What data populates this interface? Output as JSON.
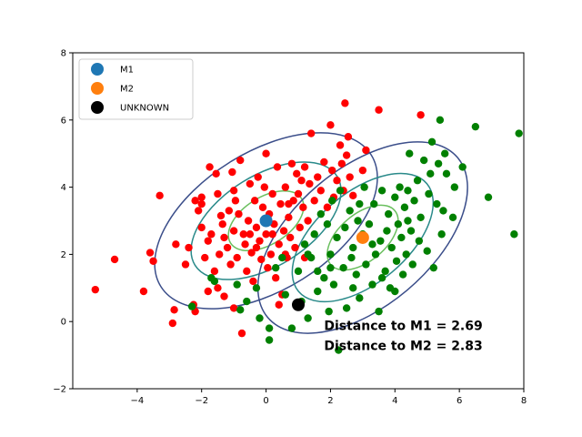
{
  "chart_data": {
    "type": "scatter",
    "xlim": [
      -6,
      8
    ],
    "ylim": [
      -2,
      8
    ],
    "x_ticks": [
      "−4",
      "−2",
      "0",
      "2",
      "4",
      "6",
      "8"
    ],
    "x_tick_values": [
      -4,
      -2,
      0,
      2,
      4,
      6,
      8
    ],
    "y_ticks": [
      "−2",
      "0",
      "2",
      "4",
      "6",
      "8"
    ],
    "y_tick_values": [
      -2,
      0,
      2,
      4,
      6,
      8
    ],
    "grid": false,
    "legend": {
      "placement": "upper-left",
      "entries": [
        {
          "label": "M1",
          "color": "#1f77b4"
        },
        {
          "label": "M2",
          "color": "#ff7f0e"
        },
        {
          "label": "UNKNOWN",
          "color": "#000000"
        }
      ]
    },
    "markers": [
      {
        "name": "M1",
        "x": 0.0,
        "y": 3.0,
        "color": "#1f77b4"
      },
      {
        "name": "M2",
        "x": 3.0,
        "y": 2.5,
        "color": "#ff7f0e"
      },
      {
        "name": "UNKNOWN",
        "x": 1.0,
        "y": 0.5,
        "color": "#000000"
      }
    ],
    "clusters": [
      {
        "color": "#ff0000",
        "points": [
          [
            -5.3,
            0.95
          ],
          [
            -4.7,
            1.85
          ],
          [
            -3.8,
            0.9
          ],
          [
            -3.6,
            2.05
          ],
          [
            -3.5,
            1.8
          ],
          [
            -3.3,
            3.75
          ],
          [
            -2.9,
            -0.05
          ],
          [
            -2.85,
            0.35
          ],
          [
            -2.8,
            2.3
          ],
          [
            -2.5,
            1.7
          ],
          [
            -2.4,
            2.2
          ],
          [
            -2.25,
            0.5
          ],
          [
            -2.2,
            0.3
          ],
          [
            -2.2,
            3.6
          ],
          [
            -2.1,
            3.3
          ],
          [
            -2.0,
            2.8
          ],
          [
            -2.0,
            3.7
          ],
          [
            -1.9,
            1.9
          ],
          [
            -1.8,
            2.4
          ],
          [
            -1.75,
            4.6
          ],
          [
            -1.7,
            2.6
          ],
          [
            -1.6,
            1.5
          ],
          [
            -1.55,
            4.4
          ],
          [
            -1.5,
            3.8
          ],
          [
            -1.5,
            1.0
          ],
          [
            -1.45,
            2.0
          ],
          [
            -1.4,
            3.15
          ],
          [
            -1.35,
            2.9
          ],
          [
            -1.3,
            2.5
          ],
          [
            -1.3,
            0.75
          ],
          [
            -1.2,
            2.2
          ],
          [
            -1.15,
            3.3
          ],
          [
            -1.1,
            1.7
          ],
          [
            -1.05,
            4.45
          ],
          [
            -1.0,
            2.7
          ],
          [
            -1.0,
            0.4
          ],
          [
            -0.95,
            3.6
          ],
          [
            -0.9,
            1.9
          ],
          [
            -0.85,
            3.2
          ],
          [
            -0.8,
            4.8
          ],
          [
            -0.75,
            -0.35
          ],
          [
            -0.7,
            2.6
          ],
          [
            -0.65,
            2.3
          ],
          [
            -0.6,
            1.5
          ],
          [
            -0.55,
            3.0
          ],
          [
            -0.5,
            4.1
          ],
          [
            -0.45,
            2.05
          ],
          [
            -0.4,
            1.2
          ],
          [
            -0.35,
            3.6
          ],
          [
            -0.3,
            2.8
          ],
          [
            -0.25,
            4.3
          ],
          [
            -0.2,
            2.4
          ],
          [
            -0.15,
            1.85
          ],
          [
            -0.1,
            3.4
          ],
          [
            -0.05,
            4.0
          ],
          [
            0.0,
            2.6
          ],
          [
            0.0,
            5.0
          ],
          [
            0.05,
            1.6
          ],
          [
            0.1,
            3.2
          ],
          [
            0.15,
            2.0
          ],
          [
            0.2,
            3.8
          ],
          [
            0.25,
            2.9
          ],
          [
            0.3,
            1.3
          ],
          [
            0.35,
            4.6
          ],
          [
            0.4,
            2.3
          ],
          [
            0.45,
            3.5
          ],
          [
            0.5,
            0.8
          ],
          [
            0.55,
            2.7
          ],
          [
            0.6,
            4.0
          ],
          [
            0.65,
            1.9
          ],
          [
            0.7,
            3.1
          ],
          [
            0.75,
            2.5
          ],
          [
            0.8,
            4.7
          ],
          [
            0.85,
            3.6
          ],
          [
            0.9,
            2.2
          ],
          [
            0.95,
            4.4
          ],
          [
            1.0,
            3.8
          ],
          [
            1.05,
            2.8
          ],
          [
            1.1,
            4.2
          ],
          [
            1.15,
            3.4
          ],
          [
            1.2,
            4.6
          ],
          [
            1.3,
            3.0
          ],
          [
            1.35,
            4.1
          ],
          [
            1.4,
            5.6
          ],
          [
            1.5,
            3.6
          ],
          [
            1.6,
            4.3
          ],
          [
            1.7,
            3.9
          ],
          [
            1.8,
            4.75
          ],
          [
            1.9,
            3.4
          ],
          [
            2.0,
            5.85
          ],
          [
            2.05,
            4.5
          ],
          [
            2.1,
            3.7
          ],
          [
            2.2,
            4.2
          ],
          [
            2.3,
            5.25
          ],
          [
            2.35,
            4.7
          ],
          [
            2.4,
            3.9
          ],
          [
            2.45,
            6.5
          ],
          [
            2.5,
            4.95
          ],
          [
            2.55,
            5.5
          ],
          [
            2.6,
            4.3
          ],
          [
            2.7,
            3.75
          ],
          [
            3.0,
            4.5
          ],
          [
            3.1,
            5.1
          ],
          [
            3.5,
            6.3
          ],
          [
            4.8,
            6.15
          ],
          [
            -0.3,
            2.2
          ],
          [
            0.2,
            2.6
          ],
          [
            0.6,
            2.0
          ],
          [
            -1.8,
            0.9
          ],
          [
            -0.5,
            2.6
          ],
          [
            1.2,
            1.9
          ],
          [
            0.4,
            0.5
          ],
          [
            -2.0,
            3.5
          ],
          [
            -1.0,
            3.9
          ],
          [
            0.7,
            3.5
          ]
        ]
      },
      {
        "color": "#008000",
        "points": [
          [
            -2.3,
            0.45
          ],
          [
            -1.7,
            1.3
          ],
          [
            -1.6,
            1.2
          ],
          [
            -0.9,
            1.1
          ],
          [
            -0.8,
            0.35
          ],
          [
            -0.6,
            0.6
          ],
          [
            -0.3,
            1.0
          ],
          [
            -0.2,
            0.1
          ],
          [
            0.1,
            -0.2
          ],
          [
            0.1,
            -0.55
          ],
          [
            0.3,
            1.6
          ],
          [
            0.5,
            1.9
          ],
          [
            0.6,
            0.8
          ],
          [
            0.8,
            -0.2
          ],
          [
            1.0,
            1.5
          ],
          [
            1.1,
            0.6
          ],
          [
            1.2,
            2.3
          ],
          [
            1.3,
            0.1
          ],
          [
            1.4,
            1.9
          ],
          [
            1.5,
            2.6
          ],
          [
            1.6,
            0.9
          ],
          [
            1.7,
            3.2
          ],
          [
            1.8,
            1.3
          ],
          [
            1.9,
            2.9
          ],
          [
            1.95,
            0.3
          ],
          [
            2.0,
            2.0
          ],
          [
            2.05,
            3.6
          ],
          [
            2.1,
            1.1
          ],
          [
            2.2,
            2.5
          ],
          [
            2.25,
            -0.85
          ],
          [
            2.3,
            3.9
          ],
          [
            2.4,
            1.6
          ],
          [
            2.45,
            2.8
          ],
          [
            2.5,
            0.4
          ],
          [
            2.6,
            3.3
          ],
          [
            2.65,
            1.9
          ],
          [
            2.7,
            2.2
          ],
          [
            2.8,
            1.4
          ],
          [
            2.85,
            3.0
          ],
          [
            2.9,
            0.7
          ],
          [
            3.0,
            2.6
          ],
          [
            3.05,
            4.0
          ],
          [
            3.1,
            1.7
          ],
          [
            3.2,
            2.9
          ],
          [
            3.3,
            1.1
          ],
          [
            3.35,
            3.5
          ],
          [
            3.4,
            2.0
          ],
          [
            3.5,
            0.3
          ],
          [
            3.55,
            2.4
          ],
          [
            3.6,
            3.9
          ],
          [
            3.7,
            1.5
          ],
          [
            3.75,
            2.7
          ],
          [
            3.8,
            3.2
          ],
          [
            3.85,
            1.0
          ],
          [
            3.9,
            2.2
          ],
          [
            4.0,
            3.7
          ],
          [
            4.05,
            1.8
          ],
          [
            4.1,
            2.9
          ],
          [
            4.15,
            4.0
          ],
          [
            4.2,
            2.5
          ],
          [
            4.25,
            1.4
          ],
          [
            4.3,
            3.4
          ],
          [
            4.35,
            2.0
          ],
          [
            4.4,
            3.9
          ],
          [
            4.45,
            5.0
          ],
          [
            4.5,
            2.7
          ],
          [
            4.55,
            1.7
          ],
          [
            4.6,
            3.6
          ],
          [
            4.7,
            4.2
          ],
          [
            4.75,
            2.4
          ],
          [
            4.8,
            3.1
          ],
          [
            4.9,
            4.8
          ],
          [
            5.0,
            2.1
          ],
          [
            5.05,
            3.8
          ],
          [
            5.1,
            4.4
          ],
          [
            5.15,
            5.35
          ],
          [
            5.2,
            1.6
          ],
          [
            5.3,
            3.5
          ],
          [
            5.35,
            4.7
          ],
          [
            5.4,
            6.0
          ],
          [
            5.45,
            2.6
          ],
          [
            5.5,
            3.3
          ],
          [
            5.55,
            5.0
          ],
          [
            5.6,
            4.4
          ],
          [
            5.8,
            3.1
          ],
          [
            5.85,
            4.0
          ],
          [
            6.1,
            4.6
          ],
          [
            6.5,
            5.8
          ],
          [
            6.9,
            3.7
          ],
          [
            7.7,
            2.6
          ],
          [
            7.85,
            5.6
          ],
          [
            1.3,
            2.0
          ],
          [
            2.0,
            1.6
          ],
          [
            2.7,
            1.0
          ],
          [
            3.3,
            2.3
          ],
          [
            4.0,
            0.9
          ],
          [
            1.6,
            1.5
          ],
          [
            2.9,
            3.5
          ],
          [
            3.6,
            1.3
          ],
          [
            4.4,
            3.0
          ]
        ]
      }
    ],
    "ellipses": [
      {
        "cx": 0.0,
        "cy": 3.0,
        "rx": 1.3,
        "ry": 0.7,
        "angle_deg": 32,
        "color": "#6abf5e"
      },
      {
        "cx": 0.0,
        "cy": 3.0,
        "rx": 2.6,
        "ry": 1.35,
        "angle_deg": 32,
        "color": "#2a8a8a"
      },
      {
        "cx": 0.0,
        "cy": 3.0,
        "rx": 3.85,
        "ry": 2.05,
        "angle_deg": 32,
        "color": "#3b4e8a"
      },
      {
        "cx": 3.0,
        "cy": 2.5,
        "rx": 1.3,
        "ry": 0.7,
        "angle_deg": 40,
        "color": "#6abf5e"
      },
      {
        "cx": 3.0,
        "cy": 2.5,
        "rx": 2.6,
        "ry": 1.35,
        "angle_deg": 40,
        "color": "#2a8a8a"
      },
      {
        "cx": 3.0,
        "cy": 2.5,
        "rx": 3.85,
        "ry": 2.05,
        "angle_deg": 40,
        "color": "#3b4e8a"
      }
    ],
    "annotations": [
      {
        "text": "Distance to M1 = 2.69",
        "x": 1.8,
        "y": -0.25
      },
      {
        "text": "Distance to M2 = 2.83",
        "x": 1.8,
        "y": -0.85
      }
    ]
  }
}
